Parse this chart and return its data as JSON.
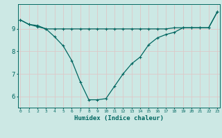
{
  "title": "",
  "xlabel": "Humidex (Indice chaleur)",
  "bg_color": "#cce8e4",
  "grid_color": "#ddc8c8",
  "line_color": "#006660",
  "x_values": [
    0,
    1,
    2,
    3,
    4,
    5,
    6,
    7,
    8,
    9,
    10,
    11,
    12,
    13,
    14,
    15,
    16,
    17,
    18,
    19,
    20,
    21,
    22,
    23
  ],
  "curve1": [
    9.4,
    9.2,
    9.1,
    9.0,
    8.65,
    8.25,
    7.6,
    6.65,
    5.85,
    5.85,
    5.9,
    6.45,
    7.0,
    7.45,
    7.75,
    8.3,
    8.6,
    8.75,
    8.85,
    9.05,
    9.05,
    9.05,
    9.05,
    9.75
  ],
  "curve2": [
    9.4,
    9.2,
    9.15,
    9.0,
    9.0,
    9.0,
    9.0,
    9.0,
    9.0,
    9.0,
    9.0,
    9.0,
    9.0,
    9.0,
    9.0,
    9.0,
    9.0,
    9.0,
    9.05,
    9.05,
    9.05,
    9.05,
    9.05,
    9.75
  ],
  "ylim": [
    5.5,
    10.1
  ],
  "yticks": [
    6,
    7,
    8,
    9
  ],
  "xticks": [
    0,
    1,
    2,
    3,
    4,
    5,
    6,
    7,
    8,
    9,
    10,
    11,
    12,
    13,
    14,
    15,
    16,
    17,
    18,
    19,
    20,
    21,
    22,
    23
  ],
  "xlim": [
    -0.3,
    23.3
  ]
}
